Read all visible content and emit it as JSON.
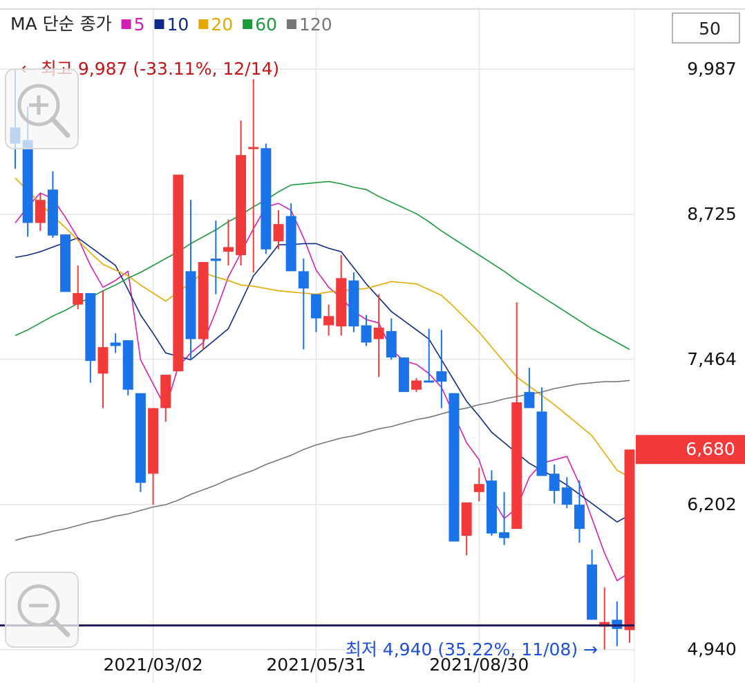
{
  "chart_data": {
    "type": "candlestick",
    "legend_title": "MA 단순 종가",
    "candle_count": 50,
    "categories": [
      null,
      null,
      null,
      null,
      null,
      null,
      null,
      null,
      null,
      null,
      null,
      "2021/03/02",
      null,
      null,
      null,
      null,
      null,
      null,
      null,
      null,
      null,
      null,
      null,
      null,
      "2021/05/31",
      null,
      null,
      null,
      null,
      null,
      null,
      null,
      null,
      null,
      null,
      null,
      null,
      "2021/08/30",
      null,
      null,
      null,
      null,
      null,
      null,
      null,
      null,
      null,
      null,
      null,
      null
    ],
    "open": [
      9480,
      9370,
      8650,
      8940,
      8550,
      7940,
      8040,
      7340,
      7610,
      7630,
      7170,
      6470,
      7040,
      7360,
      8230,
      7640,
      8340,
      8400,
      8370,
      9300,
      9300,
      8490,
      8710,
      8230,
      8030,
      7760,
      7750,
      8150,
      7760,
      7640,
      7710,
      7480,
      7200,
      7280,
      7360,
      7170,
      5930,
      6310,
      6410,
      5960,
      5990,
      7180,
      7010,
      6470,
      6350,
      6200,
      5680,
      5140,
      5200,
      5110
    ],
    "high": [
      9987,
      9660,
      8910,
      9100,
      8550,
      8280,
      8040,
      8060,
      7690,
      7630,
      7170,
      7040,
      7330,
      9070,
      8850,
      8310,
      8670,
      8680,
      9540,
      9900,
      9340,
      8760,
      8820,
      8340,
      8030,
      7940,
      8370,
      8220,
      7850,
      8030,
      7820,
      7480,
      7300,
      7730,
      7720,
      7170,
      6220,
      6520,
      6500,
      6310,
      7960,
      7390,
      7220,
      6550,
      6440,
      6410,
      5810,
      5480,
      5360,
      6680
    ],
    "low": [
      9120,
      8530,
      8580,
      8520,
      8050,
      7900,
      7260,
      7040,
      7520,
      7150,
      6310,
      6200,
      6920,
      7360,
      7460,
      7550,
      8030,
      8280,
      8280,
      8220,
      8380,
      8420,
      8230,
      7550,
      7700,
      7670,
      7670,
      7700,
      7580,
      7310,
      7460,
      7180,
      7180,
      7270,
      7040,
      5880,
      5760,
      6230,
      5930,
      5850,
      5990,
      7040,
      6450,
      6210,
      6170,
      5870,
      5200,
      4940,
      4970,
      5000
    ],
    "close": [
      9340,
      8650,
      8850,
      8540,
      8050,
      8040,
      7450,
      7570,
      7580,
      7200,
      6390,
      7040,
      7330,
      9070,
      7640,
      8310,
      8320,
      8440,
      9240,
      9310,
      8420,
      8640,
      8230,
      8080,
      7820,
      7840,
      8170,
      7750,
      7610,
      7740,
      7480,
      7180,
      7280,
      7270,
      7270,
      5880,
      6220,
      6380,
      5950,
      5910,
      7090,
      7040,
      6450,
      6320,
      6200,
      5990,
      5200,
      5180,
      5120,
      6680
    ],
    "up_color": "#f23a3a",
    "down_color": "#1a73e8",
    "series": [
      {
        "name": "5",
        "color": "#d21fb4",
        "values": [
          8650,
          8790,
          8910,
          8860,
          8700,
          8520,
          8280,
          8090,
          8150,
          8230,
          7460,
          7250,
          7040,
          7400,
          7520,
          7610,
          7880,
          8180,
          8390,
          8600,
          8790,
          8820,
          8760,
          8520,
          8240,
          8090,
          8000,
          7880,
          7810,
          7780,
          7550,
          7450,
          7420,
          7340,
          7220,
          6980,
          6740,
          6590,
          6260,
          6080,
          6170,
          6440,
          6560,
          6590,
          6620,
          6380,
          6080,
          5780,
          5540,
          5610
        ]
      },
      {
        "name": "10",
        "color": "#0d2a8a",
        "values": [
          8350,
          8370,
          8400,
          8440,
          8480,
          8520,
          8440,
          8360,
          8280,
          8070,
          7850,
          7690,
          7520,
          7490,
          7460,
          7550,
          7640,
          7730,
          7960,
          8190,
          8320,
          8460,
          8460,
          8470,
          8470,
          8430,
          8400,
          8260,
          8120,
          8000,
          7880,
          7800,
          7720,
          7640,
          7460,
          7280,
          7100,
          6970,
          6830,
          6740,
          6650,
          6560,
          6500,
          6440,
          6370,
          6290,
          6210,
          6130,
          6050,
          6110
        ]
      },
      {
        "name": "20",
        "color": "#e6a800",
        "values": [
          9040,
          8930,
          8820,
          8710,
          8610,
          8500,
          8390,
          8290,
          8240,
          8190,
          8110,
          8040,
          7970,
          8050,
          8130,
          8220,
          8180,
          8150,
          8110,
          8100,
          8080,
          8060,
          8050,
          8040,
          8030,
          8050,
          8060,
          8070,
          8080,
          8110,
          8140,
          8130,
          8120,
          8070,
          8020,
          7920,
          7810,
          7700,
          7570,
          7440,
          7310,
          7230,
          7150,
          7070,
          6980,
          6890,
          6800,
          6650,
          6500,
          6440
        ]
      },
      {
        "name": "60",
        "color": "#1a9a3a",
        "values": [
          7670,
          7720,
          7780,
          7840,
          7890,
          7950,
          8000,
          8060,
          8110,
          8170,
          8220,
          8280,
          8340,
          8400,
          8470,
          8530,
          8590,
          8660,
          8720,
          8790,
          8850,
          8920,
          8980,
          8990,
          9000,
          9010,
          8990,
          8960,
          8940,
          8880,
          8830,
          8780,
          8730,
          8660,
          8580,
          8510,
          8440,
          8370,
          8300,
          8230,
          8150,
          8080,
          8010,
          7940,
          7870,
          7800,
          7730,
          7670,
          7610,
          7550
        ]
      },
      {
        "name": "120",
        "color": "#777777",
        "values": [
          5890,
          5920,
          5940,
          5970,
          5990,
          6020,
          6050,
          6070,
          6100,
          6120,
          6150,
          6180,
          6200,
          6240,
          6290,
          6330,
          6370,
          6420,
          6460,
          6500,
          6550,
          6590,
          6630,
          6680,
          6720,
          6750,
          6780,
          6800,
          6830,
          6860,
          6880,
          6910,
          6940,
          6960,
          6990,
          7020,
          7040,
          7070,
          7090,
          7120,
          7140,
          7160,
          7180,
          7210,
          7230,
          7250,
          7260,
          7270,
          7270,
          7280
        ]
      }
    ],
    "ylim": [
      4650,
      10510
    ],
    "yticks": [
      {
        "value": 9987,
        "label": "9,987"
      },
      {
        "value": 8725,
        "label": "8,725"
      },
      {
        "value": 7464,
        "label": "7,464"
      },
      {
        "value": 6202,
        "label": "6,202"
      },
      {
        "value": 4940,
        "label": "4,940"
      }
    ],
    "grid": true,
    "last_price": {
      "value": 6680,
      "label": "6,680",
      "color": "#f23a3a"
    },
    "horizontal_line": {
      "value": 5150,
      "color": "#1c1a5a"
    },
    "high_annotation": {
      "text": "← 최고 9,987 (-33.11%, 12/14)",
      "color": "#c0161a"
    },
    "low_annotation": {
      "text": "최저 4,940 (35.22%, 11/08) →",
      "color": "#1e4fd8"
    }
  }
}
